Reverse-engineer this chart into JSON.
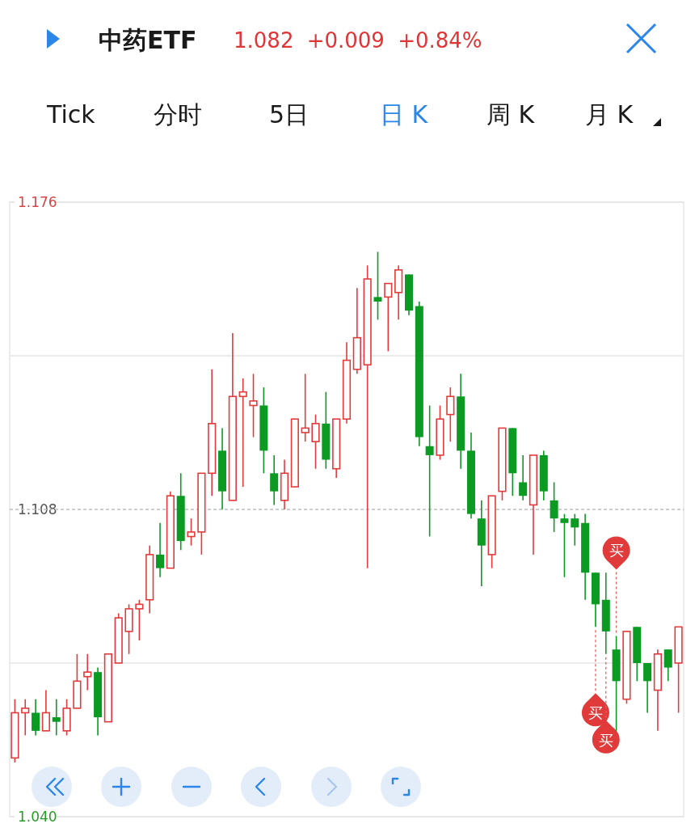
{
  "chart_data": {
    "type": "candlestick",
    "title": "中药ETF",
    "subtitle": "1.082 +0.009 +0.84%",
    "categories": [
      null,
      null,
      null,
      null,
      null,
      null,
      null,
      null,
      null,
      null,
      null,
      null,
      null,
      null,
      null,
      null,
      null,
      null,
      null,
      null,
      null,
      null,
      null,
      null,
      null,
      null,
      null,
      null,
      null,
      null,
      null,
      null,
      null,
      null,
      null,
      null,
      null,
      null,
      null,
      null,
      null,
      null,
      null,
      null,
      null,
      null,
      null,
      null,
      null,
      null,
      null,
      null,
      null,
      null,
      null,
      null,
      null,
      null,
      null,
      null,
      null,
      null,
      null,
      null,
      null
    ],
    "ohlc": [
      [
        1.053,
        1.066,
        1.052,
        1.063
      ],
      [
        1.063,
        1.066,
        1.058,
        1.064
      ],
      [
        1.063,
        1.066,
        1.058,
        1.059
      ],
      [
        1.059,
        1.068,
        1.059,
        1.063
      ],
      [
        1.062,
        1.066,
        1.058,
        1.061
      ],
      [
        1.059,
        1.066,
        1.058,
        1.064
      ],
      [
        1.064,
        1.076,
        1.064,
        1.07
      ],
      [
        1.071,
        1.076,
        1.068,
        1.072
      ],
      [
        1.072,
        1.073,
        1.058,
        1.062
      ],
      [
        1.061,
        1.076,
        1.061,
        1.076
      ],
      [
        1.074,
        1.085,
        1.074,
        1.084
      ],
      [
        1.081,
        1.087,
        1.076,
        1.086
      ],
      [
        1.086,
        1.088,
        1.079,
        1.087
      ],
      [
        1.088,
        1.1,
        1.085,
        1.098
      ],
      [
        1.098,
        1.105,
        1.093,
        1.095
      ],
      [
        1.095,
        1.112,
        1.095,
        1.111
      ],
      [
        1.111,
        1.116,
        1.099,
        1.101
      ],
      [
        1.102,
        1.106,
        1.1,
        1.103
      ],
      [
        1.103,
        1.116,
        1.098,
        1.116
      ],
      [
        1.116,
        1.139,
        1.111,
        1.127
      ],
      [
        1.121,
        1.126,
        1.108,
        1.112
      ],
      [
        1.11,
        1.147,
        1.11,
        1.133
      ],
      [
        1.133,
        1.137,
        1.113,
        1.134
      ],
      [
        1.131,
        1.138,
        1.124,
        1.132
      ],
      [
        1.131,
        1.135,
        1.116,
        1.121
      ],
      [
        1.116,
        1.12,
        1.109,
        1.112
      ],
      [
        1.11,
        1.119,
        1.108,
        1.116
      ],
      [
        1.113,
        1.128,
        1.113,
        1.128
      ],
      [
        1.125,
        1.138,
        1.123,
        1.126
      ],
      [
        1.123,
        1.129,
        1.117,
        1.127
      ],
      [
        1.127,
        1.134,
        1.117,
        1.119
      ],
      [
        1.117,
        1.128,
        1.115,
        1.128
      ],
      [
        1.128,
        1.145,
        1.127,
        1.141
      ],
      [
        1.139,
        1.157,
        1.138,
        1.146
      ],
      [
        1.14,
        1.162,
        1.095,
        1.159
      ],
      [
        1.155,
        1.165,
        1.15,
        1.154
      ],
      [
        1.155,
        1.158,
        1.143,
        1.158
      ],
      [
        1.156,
        1.162,
        1.15,
        1.161
      ],
      [
        1.16,
        1.16,
        1.151,
        1.152
      ],
      [
        1.153,
        1.154,
        1.122,
        1.124
      ],
      [
        1.122,
        1.131,
        1.102,
        1.12
      ],
      [
        1.12,
        1.131,
        1.119,
        1.128
      ],
      [
        1.129,
        1.135,
        1.123,
        1.133
      ],
      [
        1.133,
        1.138,
        1.117,
        1.121
      ],
      [
        1.121,
        1.125,
        1.106,
        1.107
      ],
      [
        1.106,
        1.11,
        1.091,
        1.1
      ],
      [
        1.098,
        1.111,
        1.095,
        1.111
      ],
      [
        1.112,
        1.126,
        1.11,
        1.126
      ],
      [
        1.126,
        1.126,
        1.111,
        1.116
      ],
      [
        1.114,
        1.12,
        1.11,
        1.111
      ],
      [
        1.109,
        1.12,
        1.098,
        1.12
      ],
      [
        1.12,
        1.121,
        1.11,
        1.112
      ],
      [
        1.11,
        1.114,
        1.103,
        1.106
      ],
      [
        1.106,
        1.107,
        1.093,
        1.105
      ],
      [
        1.106,
        1.107,
        1.1,
        1.104
      ],
      [
        1.105,
        1.107,
        1.088,
        1.094
      ],
      [
        1.094,
        1.094,
        1.082,
        1.087
      ],
      [
        1.088,
        1.094,
        1.076,
        1.081
      ],
      [
        1.077,
        1.08,
        1.059,
        1.07
      ],
      [
        1.066,
        1.081,
        1.065,
        1.081
      ],
      [
        1.082,
        1.082,
        1.07,
        1.074
      ],
      [
        1.074,
        1.074,
        1.063,
        1.07
      ],
      [
        1.068,
        1.077,
        1.059,
        1.076
      ],
      [
        1.077,
        1.077,
        1.07,
        1.073
      ],
      [
        1.074,
        1.082,
        1.063,
        1.082
      ]
    ],
    "ylim": [
      1.04,
      1.176
    ],
    "yticks": [
      {
        "value": 1.04,
        "label": "1.040"
      },
      {
        "value": 1.074,
        "label": null
      },
      1.108,
      {
        "value": 1.142,
        "label": null
      },
      1.176
    ],
    "grid": "y",
    "ref_lines": [
      {
        "axis": "y",
        "value": 1.108,
        "line_style": "dashed"
      }
    ],
    "annotations": [
      "Tick",
      "分时",
      "5日",
      "日 K",
      "周 K",
      "月 K",
      "买",
      "买",
      "买"
    ]
  }
}
